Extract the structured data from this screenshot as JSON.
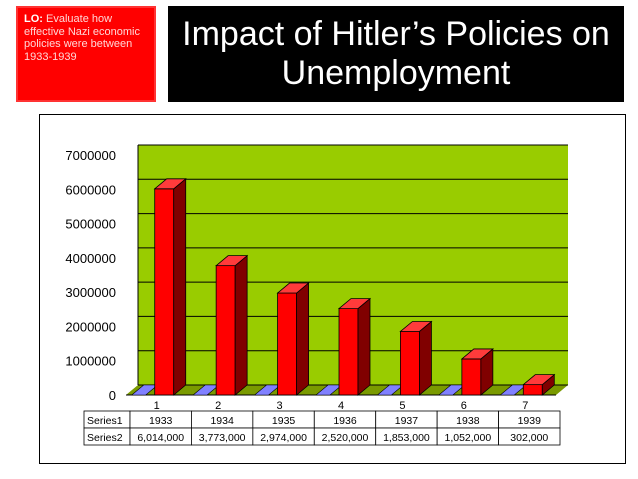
{
  "slide": {
    "lo_label": "LO:",
    "lo_text": " Evaluate how effective Nazi economic policies were between 1933-1939",
    "title": "Impact of Hitler’s Policies on Unemployment"
  },
  "colors": {
    "plot_background": "#99cc00",
    "bar_front": "#ff0000",
    "bar_side": "#800000",
    "bar_top": "#ff3b3b",
    "series1_sliver": "#8080ff",
    "lo_box": "#ff0000",
    "title_box": "#000000"
  },
  "chart_data": {
    "type": "bar",
    "style": "3d-column",
    "categories": [
      "1",
      "2",
      "3",
      "4",
      "5",
      "6",
      "7"
    ],
    "series": [
      {
        "name": "Series1",
        "values": [
          1933,
          1934,
          1935,
          1936,
          1937,
          1938,
          1939
        ],
        "labels": [
          "1933",
          "1934",
          "1935",
          "1936",
          "1937",
          "1938",
          "1939"
        ]
      },
      {
        "name": "Series2",
        "values": [
          6014000,
          3773000,
          2974000,
          2520000,
          1853000,
          1052000,
          302000
        ],
        "labels": [
          "6,014,000",
          "3,773,000",
          "2,974,000",
          "2,520,000",
          "1,853,000",
          "1,052,000",
          "302,000"
        ]
      }
    ],
    "ylim": [
      0,
      7000000
    ],
    "yticks": [
      0,
      1000000,
      2000000,
      3000000,
      4000000,
      5000000,
      6000000,
      7000000
    ],
    "ytick_labels": [
      "0",
      "1000000",
      "2000000",
      "3000000",
      "4000000",
      "5000000",
      "6000000",
      "7000000"
    ],
    "grid": true,
    "legend": "data-table below chart"
  }
}
